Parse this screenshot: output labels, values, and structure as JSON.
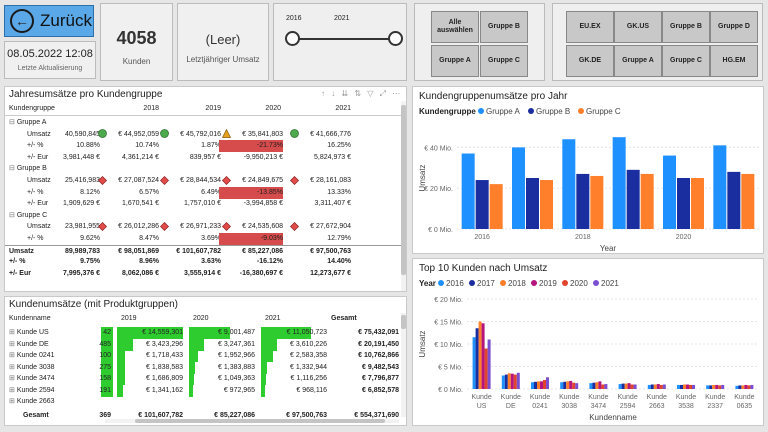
{
  "nav": {
    "back_label": "Zurück",
    "back_icon": "←"
  },
  "last_update": {
    "date": "08.05.2022 12:08",
    "caption": "Letzte Aktualisierung"
  },
  "kpi_customers": {
    "value": "4058",
    "caption": "Kunden"
  },
  "kpi_revenue": {
    "value": "(Leer)",
    "caption": "Letztjähriger Umsatz"
  },
  "year_slider": {
    "from": "2016",
    "to": "2021",
    "from_value": 2016,
    "to_value": 2021
  },
  "group_slicer": {
    "items": [
      "Alle auswählen",
      "Gruppe B",
      "Gruppe A",
      "Gruppe C"
    ]
  },
  "customer_slicer": {
    "items": [
      "EU.EX",
      "GK.US",
      "Gruppe B",
      "Gruppe D",
      "GK.DE",
      "Gruppe A",
      "Gruppe C",
      "HG.EM"
    ]
  },
  "matrix1": {
    "title": "Jahresumsätze pro Kundengruppe",
    "header": [
      "Kundengruppe",
      "2018",
      "2019",
      "2020",
      "2021"
    ],
    "rows": [
      {
        "label": "Gruppe A",
        "type": "group",
        "cells": [
          "",
          "",
          "",
          "",
          ""
        ]
      },
      {
        "label": "Umsatz",
        "type": "value",
        "cells": [
          "40,590,845",
          "€ 44,952,059",
          "€ 45,792,016",
          "€ 35,841,803",
          "€ 41,666,776"
        ]
      },
      {
        "label": "+/- %",
        "type": "pct",
        "cells": [
          "10.88%",
          "10.74%",
          "1.87%",
          "-21.73%",
          "16.25%"
        ]
      },
      {
        "label": "+/- Eur",
        "type": "eur",
        "cells": [
          "3,981,448 €",
          "4,361,214 €",
          "839,957 €",
          "-9,950,213 €",
          "5,824,973 €"
        ]
      },
      {
        "label": "Gruppe B",
        "type": "group",
        "cells": [
          "",
          "",
          "",
          "",
          ""
        ]
      },
      {
        "label": "Umsatz",
        "type": "value",
        "cells": [
          "25,416,983",
          "€ 27,087,524",
          "€ 28,844,534",
          "€ 24,849,675",
          "€ 28,161,083"
        ]
      },
      {
        "label": "+/- %",
        "type": "pct",
        "cells": [
          "8.12%",
          "6.57%",
          "6.49%",
          "-13.85%",
          "13.33%"
        ]
      },
      {
        "label": "+/- Eur",
        "type": "eur",
        "cells": [
          "1,909,629 €",
          "1,670,541 €",
          "1,757,010 €",
          "-3,994,858 €",
          "3,311,407 €"
        ]
      },
      {
        "label": "Gruppe C",
        "type": "group",
        "cells": [
          "",
          "",
          "",
          "",
          ""
        ]
      },
      {
        "label": "Umsatz",
        "type": "value",
        "cells": [
          "23,981,955",
          "€ 26,012,286",
          "€ 26,971,233",
          "€ 24,535,608",
          "€ 27,672,904"
        ]
      },
      {
        "label": "+/- %",
        "type": "pct",
        "cells": [
          "9.62%",
          "8.47%",
          "3.69%",
          "-9.03%",
          "12.79%"
        ]
      },
      {
        "label": "Umsatz",
        "type": "total",
        "cells": [
          "89,989,783",
          "€ 98,051,869",
          "€ 101,607,782",
          "€ 85,227,086",
          "€ 97,500,763"
        ]
      },
      {
        "label": "+/- %",
        "type": "total",
        "cells": [
          "9.75%",
          "8.96%",
          "3.63%",
          "-16.12%",
          "14.40%"
        ]
      },
      {
        "label": "+/- Eur",
        "type": "total",
        "cells": [
          "7,995,376 €",
          "8,062,086 €",
          "3,555,914 €",
          "-16,380,697 €",
          "12,273,677 €"
        ]
      }
    ]
  },
  "matrix2": {
    "title": "Kundenumsätze (mit Produktgruppen)",
    "header": [
      "Kundenname",
      "2019",
      "2020",
      "2021",
      "Gesamt"
    ],
    "rows": [
      {
        "label": "Kunde US",
        "cells": [
          "42",
          "€ 14,559,301",
          "€ 9,001,487",
          "€ 11,050,723",
          "€ 75,432,091"
        ]
      },
      {
        "label": "Kunde DE",
        "cells": [
          "485",
          "€ 3,423,296",
          "€ 3,247,361",
          "€ 3,610,226",
          "€ 20,191,450"
        ]
      },
      {
        "label": "Kunde 0241",
        "cells": [
          "100",
          "€ 1,718,433",
          "€ 1,952,966",
          "€ 2,583,358",
          "€ 10,762,866"
        ]
      },
      {
        "label": "Kunde 3038",
        "cells": [
          "275",
          "€ 1,838,583",
          "€ 1,383,883",
          "€ 1,332,944",
          "€ 9,482,543"
        ]
      },
      {
        "label": "Kunde 3474",
        "cells": [
          "158",
          "€ 1,686,809",
          "€ 1,049,363",
          "€ 1,116,256",
          "€ 7,796,877"
        ]
      },
      {
        "label": "Kunde 2594",
        "cells": [
          "191",
          "€ 1,341,162",
          "€ 972,965",
          "€ 968,116",
          "€ 6,852,578"
        ]
      },
      {
        "label": "Kunde 2663",
        "cells": [
          "",
          "",
          "",
          "",
          ""
        ]
      }
    ],
    "total": {
      "label": "Gesamt",
      "cells": [
        "369",
        "€ 101,607,782",
        "€ 85,227,086",
        "€ 97,500,763",
        "€ 554,371,690"
      ]
    }
  },
  "chart_data": [
    {
      "type": "bar",
      "title": "Kundengruppenumsätze pro Jahr",
      "legend_title": "Kundengruppe",
      "categories": [
        "2016",
        "2017",
        "2018",
        "2019",
        "2020",
        "2021"
      ],
      "series": [
        {
          "name": "Gruppe A",
          "color": "#1e90ff",
          "values": [
            37,
            40,
            44,
            45,
            36,
            41
          ]
        },
        {
          "name": "Gruppe B",
          "color": "#1a2ea0",
          "values": [
            24,
            25,
            27,
            29,
            25,
            28
          ]
        },
        {
          "name": "Gruppe C",
          "color": "#ff7f2a",
          "values": [
            22,
            24,
            26,
            27,
            25,
            27
          ]
        }
      ],
      "xlabel": "Year",
      "ylabel": "Umsatz",
      "ylim": [
        0,
        50
      ],
      "yticks": [
        "€ 0 Mio.",
        "€ 20 Mio.",
        "€ 40 Mio."
      ],
      "xtick_labels": [
        "2016",
        "2018",
        "2020"
      ],
      "legend_position": "top"
    },
    {
      "type": "bar",
      "title": "Top 10 Kunden nach Umsatz",
      "legend_title": "Year",
      "categories": [
        "Kunde US",
        "Kunde DE",
        "Kunde 0241",
        "Kunde 3038",
        "Kunde 3474",
        "Kunde 2594",
        "Kunde 2663",
        "Kunde 3538",
        "Kunde 2337",
        "Kunde 0635"
      ],
      "series": [
        {
          "name": "2016",
          "color": "#1e90ff",
          "values": [
            11.5,
            3.0,
            1.5,
            1.5,
            1.3,
            1.1,
            0.9,
            0.9,
            0.8,
            0.7
          ]
        },
        {
          "name": "2017",
          "color": "#1a2ea0",
          "values": [
            13.5,
            3.2,
            1.6,
            1.6,
            1.4,
            1.2,
            1.0,
            0.9,
            0.8,
            0.8
          ]
        },
        {
          "name": "2018",
          "color": "#ff7f2a",
          "values": [
            15.0,
            3.5,
            1.7,
            1.7,
            1.5,
            1.2,
            1.0,
            1.0,
            0.9,
            0.8
          ]
        },
        {
          "name": "2019",
          "color": "#b4167e",
          "values": [
            14.6,
            3.4,
            1.7,
            1.8,
            1.7,
            1.3,
            1.1,
            1.0,
            0.9,
            0.9
          ]
        },
        {
          "name": "2020",
          "color": "#e0442e",
          "values": [
            9.0,
            3.2,
            2.0,
            1.4,
            1.0,
            1.0,
            0.9,
            0.9,
            0.8,
            0.8
          ]
        },
        {
          "name": "2021",
          "color": "#7b4fcf",
          "values": [
            11.0,
            3.6,
            2.6,
            1.3,
            1.1,
            1.0,
            1.0,
            0.9,
            0.9,
            0.9
          ]
        }
      ],
      "xlabel": "Kundenname",
      "ylabel": "Umsatz",
      "ylim": [
        0,
        20
      ],
      "yticks": [
        "€ 0 Mio.",
        "€ 5 Mio.",
        "€ 10 Mio.",
        "€ 15 Mio.",
        "€ 20 Mio."
      ],
      "legend_position": "top"
    }
  ]
}
